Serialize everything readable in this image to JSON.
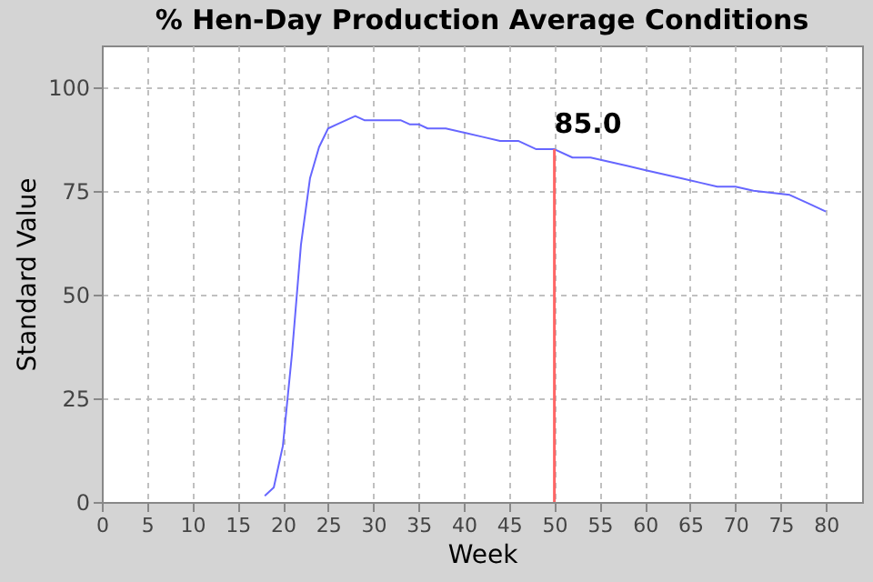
{
  "chart_data": {
    "type": "line",
    "title": "% Hen-Day Production Average Conditions",
    "xlabel": "Week",
    "ylabel": "Standard Value",
    "series": [
      {
        "color": "#6666ff",
        "x": [
          18,
          19,
          20,
          21,
          22,
          23,
          24,
          25,
          26,
          27,
          28,
          29,
          30,
          31,
          32,
          33,
          34,
          35,
          36,
          38,
          40,
          42,
          44,
          46,
          48,
          50,
          52,
          54,
          56,
          58,
          60,
          62,
          64,
          66,
          68,
          70,
          72,
          74,
          76,
          78,
          80
        ],
        "values": [
          1.5,
          3.5,
          13.5,
          35.5,
          62,
          78,
          85.5,
          90,
          91,
          92,
          93,
          92,
          92,
          92,
          92,
          92,
          91,
          91,
          90,
          90,
          89,
          88,
          87,
          87,
          85,
          85,
          83,
          83,
          82,
          81,
          80,
          79,
          78,
          77,
          76,
          76,
          75,
          74.5,
          74,
          72,
          70
        ]
      }
    ],
    "xlim": [
      0,
      84
    ],
    "xticks": [
      0,
      5,
      10,
      15,
      20,
      25,
      30,
      35,
      40,
      45,
      50,
      55,
      60,
      65,
      70,
      75,
      80
    ],
    "ylim": [
      0,
      110
    ],
    "yticks": [
      0,
      25,
      50,
      75,
      100
    ],
    "grid": true,
    "line_style": "solid",
    "marker": "none",
    "annotations": [
      {
        "text": "85.0",
        "x": 50,
        "y": 85
      }
    ],
    "ref_lines": [
      {
        "axis": "x",
        "value": 50,
        "color": "#ff6666"
      }
    ]
  }
}
